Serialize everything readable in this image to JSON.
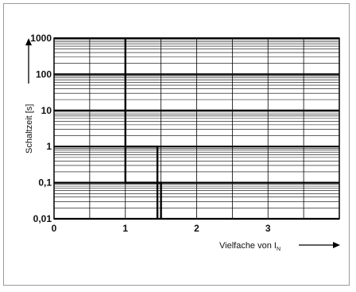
{
  "chart_data": {
    "type": "line",
    "title": "",
    "xlabel": "Vielfache von I",
    "xlabel_subscript": "N",
    "ylabel": "Schaltzeit [s]",
    "x_scale": "linear",
    "y_scale": "log",
    "xlim": [
      0,
      4
    ],
    "ylim": [
      0.01,
      1000
    ],
    "x_ticks": [
      0,
      1,
      2,
      3
    ],
    "x_tick_labels": [
      "0",
      "1",
      "2",
      "3"
    ],
    "y_ticks": [
      0.01,
      0.1,
      1,
      10,
      100,
      1000
    ],
    "y_tick_labels": [
      "0,01",
      "0,1",
      "1",
      "10",
      "100",
      "1000"
    ],
    "grid": true,
    "legend": "none",
    "series": [
      {
        "x": [
          1,
          1,
          1.5,
          1.5
        ],
        "y": [
          1000,
          0.1,
          0.1,
          0.01
        ]
      },
      {
        "x": [
          1,
          1.45,
          1.45
        ],
        "y": [
          1,
          1,
          0.01
        ]
      }
    ]
  }
}
